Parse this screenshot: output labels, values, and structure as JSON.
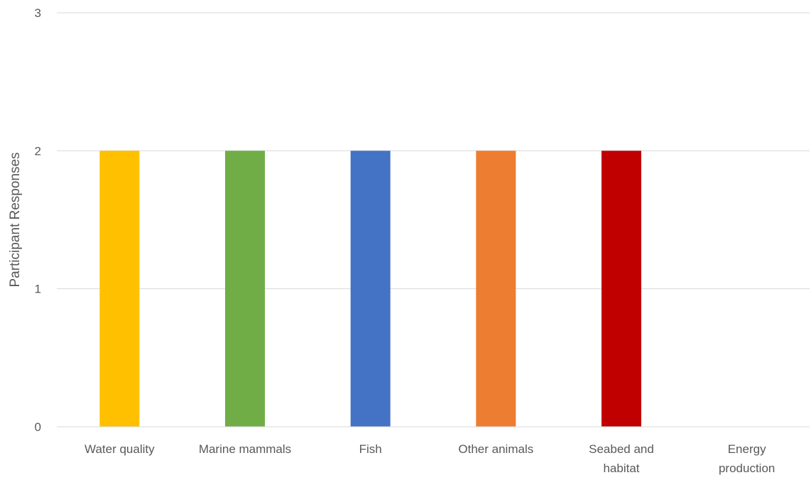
{
  "chart_data": {
    "type": "bar",
    "title": "",
    "xlabel": "",
    "ylabel": "Participant Responses",
    "categories": [
      [
        "Water quality"
      ],
      [
        "Marine mammals"
      ],
      [
        "Fish"
      ],
      [
        "Other animals"
      ],
      [
        "Seabed and",
        "habitat"
      ],
      [
        "Energy",
        "production"
      ]
    ],
    "values": [
      2,
      2,
      2,
      2,
      2,
      0
    ],
    "colors": [
      "#FFC000",
      "#70AD47",
      "#4472C4",
      "#ED7D31",
      "#C00000",
      "#A5A5A5"
    ],
    "ylim": [
      0,
      3
    ],
    "yticks": [
      0,
      1,
      2,
      3
    ],
    "grid": true,
    "legend": "none"
  }
}
